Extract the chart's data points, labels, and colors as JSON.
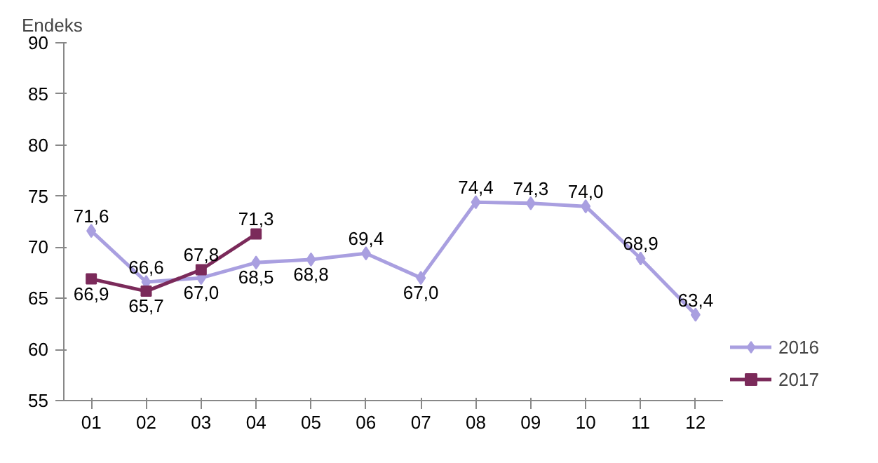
{
  "chart_data": {
    "type": "line",
    "ylabel": "Endeks",
    "categories": [
      "01",
      "02",
      "03",
      "04",
      "05",
      "06",
      "07",
      "08",
      "09",
      "10",
      "11",
      "12"
    ],
    "ylim": [
      55,
      90
    ],
    "yticks": [
      55,
      60,
      65,
      70,
      75,
      80,
      85,
      90
    ],
    "legend": "right",
    "series": [
      {
        "name": "2016",
        "color": "#a99fe0",
        "marker": "diamond",
        "values": [
          71.6,
          66.6,
          67.0,
          68.5,
          68.8,
          69.4,
          67.0,
          74.4,
          74.3,
          74.0,
          68.9,
          63.4
        ],
        "value_labels": [
          "71,6",
          "66,6",
          "67,0",
          "68,5",
          "68,8",
          "69,4",
          "67,0",
          "74,4",
          "74,3",
          "74,0",
          "68,9",
          "63,4"
        ]
      },
      {
        "name": "2017",
        "color": "#7b2a5a",
        "marker": "square",
        "values": [
          66.9,
          65.7,
          67.8,
          71.3,
          null,
          null,
          null,
          null,
          null,
          null,
          null,
          null
        ],
        "value_labels": [
          "66,9",
          "65,7",
          "67,8",
          "71,3",
          null,
          null,
          null,
          null,
          null,
          null,
          null,
          null
        ]
      }
    ]
  }
}
